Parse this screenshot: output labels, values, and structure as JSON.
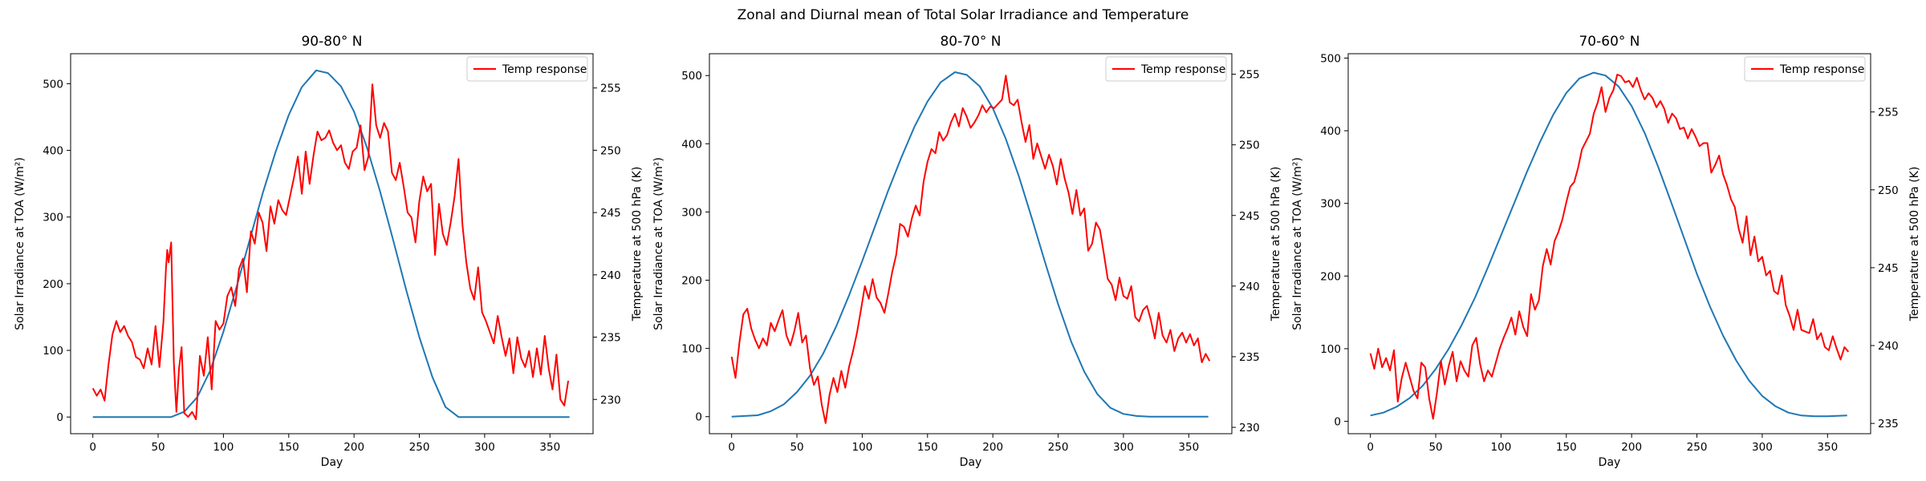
{
  "figure": {
    "suptitle": "Zonal and Diurnal mean of Total Solar Irradiance and Temperature"
  },
  "colors": {
    "solar_line": "#1f77b4",
    "temp_line": "#ff0000"
  },
  "chart_data": [
    {
      "type": "line",
      "title": "90-80° N",
      "xlabel": "Day",
      "ylabel_left": "Solar Irradiance at TOA (W/m²)",
      "ylabel_right": "Temperature at 500 hPa (K)",
      "xlim": [
        -17,
        383
      ],
      "ylim_left": [
        -25,
        545
      ],
      "ylim_right": [
        227.25,
        257.75
      ],
      "xticks": [
        0,
        50,
        100,
        150,
        200,
        250,
        300,
        350
      ],
      "yticks_left": [
        0,
        100,
        200,
        300,
        400,
        500
      ],
      "yticks_right": [
        230,
        235,
        240,
        245,
        250,
        255
      ],
      "legend": {
        "placement": "upper right",
        "entries": [
          {
            "label": "Temp response",
            "series": "temp"
          }
        ]
      },
      "solar": {
        "axis": "left",
        "x": [
          0,
          60,
          70,
          80,
          90,
          100,
          110,
          120,
          130,
          140,
          150,
          160,
          171,
          180,
          190,
          200,
          210,
          220,
          230,
          240,
          250,
          260,
          270,
          280,
          290,
          300,
          365
        ],
        "y": [
          0,
          0,
          8,
          30,
          70,
          128,
          195,
          265,
          335,
          398,
          453,
          495,
          520,
          516,
          496,
          458,
          404,
          338,
          265,
          190,
          120,
          60,
          15,
          0,
          0,
          0,
          0
        ]
      },
      "temp": {
        "axis": "right",
        "x": [
          0,
          3,
          6,
          9,
          12,
          15,
          18,
          21,
          24,
          27,
          30,
          33,
          36,
          39,
          42,
          45,
          48,
          51,
          54,
          56,
          57,
          58,
          60,
          62,
          64,
          66,
          68,
          70,
          73,
          76,
          79,
          82,
          85,
          88,
          91,
          94,
          97,
          100,
          103,
          106,
          109,
          112,
          115,
          118,
          121,
          124,
          127,
          130,
          133,
          136,
          139,
          142,
          145,
          148,
          151,
          154,
          157,
          160,
          163,
          166,
          169,
          172,
          175,
          178,
          181,
          184,
          187,
          190,
          193,
          196,
          199,
          202,
          205,
          208,
          211,
          214,
          217,
          220,
          223,
          226,
          229,
          232,
          235,
          238,
          241,
          244,
          247,
          250,
          253,
          256,
          259,
          262,
          265,
          268,
          271,
          274,
          277,
          280,
          283,
          286,
          289,
          292,
          295,
          298,
          301,
          304,
          307,
          310,
          313,
          316,
          319,
          322,
          325,
          328,
          331,
          334,
          337,
          340,
          343,
          346,
          349,
          352,
          355,
          358,
          361,
          364
        ],
        "y": [
          230.9,
          230.3,
          230.8,
          229.9,
          232.8,
          235.2,
          236.3,
          235.4,
          235.9,
          235.1,
          234.6,
          233.4,
          233.2,
          232.5,
          234.1,
          232.8,
          235.9,
          232.6,
          236.2,
          240.5,
          242.0,
          241.0,
          242.6,
          233.0,
          229.0,
          232.5,
          234.2,
          228.9,
          228.6,
          229.0,
          228.4,
          233.5,
          231.9,
          235.0,
          230.8,
          236.3,
          235.6,
          236.1,
          238.3,
          239.0,
          237.5,
          240.5,
          241.3,
          238.6,
          243.5,
          242.5,
          245.0,
          244.2,
          241.9,
          245.5,
          244.1,
          246.0,
          245.2,
          244.8,
          246.3,
          247.8,
          249.5,
          246.5,
          249.9,
          247.3,
          249.6,
          251.5,
          250.8,
          251.0,
          251.6,
          250.6,
          250.0,
          250.4,
          249.0,
          248.5,
          249.9,
          250.2,
          252.0,
          248.4,
          249.5,
          255.3,
          252.0,
          251.0,
          252.2,
          251.5,
          248.2,
          247.6,
          249.0,
          247.1,
          245.0,
          244.6,
          242.6,
          245.9,
          247.9,
          246.7,
          247.3,
          241.6,
          245.7,
          243.3,
          242.4,
          244.2,
          246.3,
          249.3,
          244.0,
          241.0,
          238.9,
          238.0,
          240.6,
          237.0,
          236.3,
          235.4,
          234.5,
          236.7,
          235.0,
          233.5,
          234.9,
          232.1,
          235.0,
          233.3,
          232.6,
          233.9,
          231.8,
          234.1,
          232.0,
          235.1,
          232.5,
          230.8,
          233.6,
          230.0,
          229.5,
          231.5
        ]
      }
    },
    {
      "type": "line",
      "title": "80-70° N",
      "xlabel": "Day",
      "ylabel_left": "Solar Irradiance at TOA (W/m²)",
      "ylabel_right": "Temperature at 500 hPa (K)",
      "xlim": [
        -17,
        383
      ],
      "ylim_left": [
        -25,
        532
      ],
      "ylim_right": [
        229.55,
        256.45
      ],
      "xticks": [
        0,
        50,
        100,
        150,
        200,
        250,
        300,
        350
      ],
      "yticks_left": [
        0,
        100,
        200,
        300,
        400,
        500
      ],
      "yticks_right": [
        230,
        235,
        240,
        245,
        250,
        255
      ],
      "legend": {
        "placement": "upper right",
        "entries": [
          {
            "label": "Temp response",
            "series": "temp"
          }
        ]
      },
      "solar": {
        "axis": "left",
        "x": [
          0,
          20,
          30,
          40,
          50,
          60,
          70,
          80,
          90,
          100,
          110,
          120,
          130,
          140,
          150,
          160,
          171,
          180,
          190,
          200,
          210,
          220,
          230,
          240,
          250,
          260,
          270,
          280,
          290,
          300,
          310,
          320,
          330,
          340,
          365
        ],
        "y": [
          0,
          2,
          8,
          18,
          36,
          60,
          92,
          132,
          178,
          228,
          280,
          332,
          380,
          425,
          462,
          490,
          505,
          501,
          484,
          452,
          407,
          352,
          290,
          226,
          165,
          110,
          66,
          33,
          13,
          4,
          1,
          0,
          0,
          0,
          0
        ]
      },
      "temp": {
        "axis": "right",
        "x": [
          0,
          3,
          6,
          9,
          12,
          15,
          18,
          21,
          24,
          27,
          30,
          33,
          36,
          39,
          42,
          45,
          48,
          51,
          54,
          57,
          60,
          63,
          66,
          69,
          72,
          75,
          78,
          81,
          84,
          87,
          90,
          93,
          96,
          99,
          102,
          105,
          108,
          111,
          114,
          117,
          120,
          123,
          126,
          129,
          132,
          135,
          138,
          141,
          144,
          147,
          150,
          153,
          156,
          159,
          162,
          165,
          168,
          171,
          174,
          177,
          180,
          183,
          186,
          189,
          192,
          195,
          198,
          201,
          204,
          207,
          210,
          213,
          216,
          219,
          222,
          225,
          228,
          231,
          234,
          237,
          240,
          243,
          246,
          249,
          252,
          255,
          258,
          261,
          264,
          267,
          270,
          273,
          276,
          279,
          282,
          285,
          288,
          291,
          294,
          297,
          300,
          303,
          306,
          309,
          312,
          315,
          318,
          321,
          324,
          327,
          330,
          333,
          336,
          339,
          342,
          345,
          348,
          351,
          354,
          357,
          360,
          363,
          366
        ],
        "y": [
          235.0,
          233.5,
          236.0,
          238.0,
          238.4,
          237.0,
          236.2,
          235.6,
          236.3,
          235.8,
          237.4,
          236.8,
          237.6,
          238.3,
          236.5,
          235.8,
          236.8,
          238.1,
          236.0,
          236.5,
          234.2,
          233.0,
          233.6,
          231.6,
          230.3,
          232.3,
          233.5,
          232.5,
          234.0,
          232.8,
          234.3,
          235.4,
          236.7,
          238.3,
          240.0,
          239.1,
          240.5,
          239.2,
          238.8,
          238.1,
          239.5,
          241.0,
          242.2,
          244.4,
          244.2,
          243.5,
          244.8,
          245.7,
          245.0,
          247.4,
          248.8,
          249.7,
          249.4,
          250.9,
          250.3,
          250.7,
          251.6,
          252.2,
          251.3,
          252.6,
          252.0,
          251.2,
          251.6,
          252.1,
          252.8,
          252.3,
          252.7,
          252.6,
          252.9,
          253.2,
          254.9,
          253.0,
          252.8,
          253.2,
          251.6,
          250.2,
          251.4,
          249.0,
          250.1,
          249.2,
          248.3,
          249.3,
          248.5,
          247.2,
          249.0,
          247.6,
          246.6,
          245.1,
          246.8,
          245.0,
          245.5,
          242.5,
          243.0,
          244.5,
          244.0,
          242.3,
          240.5,
          240.1,
          239.0,
          240.6,
          239.3,
          239.1,
          240.0,
          237.8,
          237.5,
          238.3,
          238.6,
          237.6,
          236.3,
          238.1,
          236.5,
          236.0,
          236.9,
          235.4,
          236.3,
          236.7,
          236.0,
          236.6,
          235.8,
          236.3,
          234.6,
          235.2,
          234.7
        ]
      }
    },
    {
      "type": "line",
      "title": "70-60° N",
      "xlabel": "Day",
      "ylabel_left": "Solar Irradiance at TOA (W/m²)",
      "ylabel_right": "Temperature at 500 hPa (K)",
      "xlim": [
        -17,
        383
      ],
      "ylim_left": [
        -17,
        506
      ],
      "ylim_right": [
        234.34,
        258.74
      ],
      "xticks": [
        0,
        50,
        100,
        150,
        200,
        250,
        300,
        350
      ],
      "yticks_left": [
        0,
        100,
        200,
        300,
        400,
        500
      ],
      "yticks_right": [
        235,
        240,
        245,
        250,
        255
      ],
      "legend": {
        "placement": "upper right",
        "entries": [
          {
            "label": "Temp response",
            "series": "temp"
          }
        ]
      },
      "solar": {
        "axis": "left",
        "x": [
          0,
          10,
          20,
          30,
          40,
          50,
          60,
          70,
          80,
          90,
          100,
          110,
          120,
          130,
          140,
          150,
          160,
          171,
          180,
          190,
          200,
          210,
          220,
          230,
          240,
          250,
          260,
          270,
          280,
          290,
          300,
          310,
          320,
          330,
          340,
          350,
          365
        ],
        "y": [
          8,
          12,
          20,
          32,
          49,
          72,
          100,
          133,
          170,
          212,
          256,
          300,
          344,
          385,
          422,
          452,
          472,
          480,
          476,
          461,
          434,
          397,
          352,
          303,
          253,
          203,
          158,
          118,
          84,
          56,
          35,
          21,
          12,
          8,
          7,
          7,
          8
        ]
      },
      "temp": {
        "axis": "right",
        "x": [
          0,
          3,
          6,
          9,
          12,
          15,
          18,
          21,
          24,
          27,
          30,
          33,
          36,
          39,
          42,
          45,
          48,
          51,
          54,
          57,
          60,
          63,
          66,
          69,
          72,
          75,
          78,
          81,
          84,
          87,
          90,
          93,
          96,
          99,
          102,
          105,
          108,
          111,
          114,
          117,
          120,
          123,
          126,
          129,
          132,
          135,
          138,
          141,
          144,
          147,
          150,
          153,
          156,
          159,
          162,
          165,
          168,
          171,
          174,
          177,
          180,
          183,
          186,
          189,
          192,
          195,
          198,
          201,
          204,
          207,
          210,
          213,
          216,
          219,
          222,
          225,
          228,
          231,
          234,
          237,
          240,
          243,
          246,
          249,
          252,
          255,
          258,
          261,
          264,
          267,
          270,
          273,
          276,
          279,
          282,
          285,
          288,
          291,
          294,
          297,
          300,
          303,
          306,
          309,
          312,
          315,
          318,
          321,
          324,
          327,
          330,
          333,
          336,
          339,
          342,
          345,
          348,
          351,
          354,
          357,
          360,
          363,
          366
        ],
        "y": [
          239.5,
          238.5,
          239.8,
          238.6,
          239.2,
          238.4,
          239.7,
          236.4,
          237.9,
          238.9,
          238.0,
          237.1,
          236.6,
          238.9,
          238.6,
          236.6,
          235.3,
          237.0,
          239.0,
          237.5,
          238.7,
          239.6,
          237.7,
          239.0,
          238.4,
          238.0,
          240.0,
          240.5,
          238.8,
          237.7,
          238.4,
          238.0,
          238.9,
          239.8,
          240.5,
          241.1,
          241.8,
          240.7,
          242.2,
          241.2,
          240.6,
          243.3,
          242.3,
          242.9,
          245.1,
          246.2,
          245.2,
          246.7,
          247.3,
          248.1,
          249.2,
          250.2,
          250.5,
          251.4,
          252.6,
          253.1,
          253.6,
          254.9,
          255.6,
          256.6,
          255.0,
          255.9,
          256.4,
          257.4,
          257.3,
          256.9,
          257.0,
          256.6,
          257.2,
          256.4,
          255.8,
          256.2,
          255.9,
          255.3,
          255.7,
          255.2,
          254.3,
          254.9,
          254.6,
          253.9,
          254.0,
          253.3,
          253.9,
          253.4,
          252.8,
          253.0,
          253.0,
          251.1,
          251.6,
          252.2,
          251.0,
          250.3,
          249.4,
          248.9,
          247.5,
          246.6,
          248.3,
          245.8,
          247.0,
          245.4,
          245.7,
          244.5,
          244.8,
          243.5,
          243.3,
          244.5,
          242.6,
          241.9,
          241.0,
          242.3,
          241.0,
          240.9,
          240.8,
          241.7,
          240.4,
          240.8,
          239.9,
          239.7,
          240.6,
          239.8,
          239.1,
          239.9,
          239.6
        ]
      }
    }
  ]
}
